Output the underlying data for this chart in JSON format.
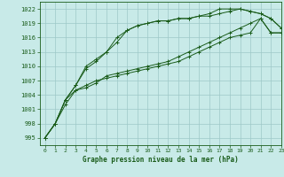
{
  "title": "Graphe pression niveau de la mer (hPa)",
  "bg_color": "#c8eae8",
  "grid_color": "#9ec8c8",
  "line_color": "#1a5c1a",
  "xlim": [
    -0.5,
    23
  ],
  "ylim": [
    993.5,
    1023.5
  ],
  "yticks": [
    995,
    998,
    1001,
    1004,
    1007,
    1010,
    1013,
    1016,
    1019,
    1022
  ],
  "xticks": [
    0,
    1,
    2,
    3,
    4,
    5,
    6,
    7,
    8,
    9,
    10,
    11,
    12,
    13,
    14,
    15,
    16,
    17,
    18,
    19,
    20,
    21,
    22,
    23
  ],
  "series": [
    [
      995,
      998,
      1003,
      1005,
      1006,
      1007,
      1007.5,
      1008,
      1008.5,
      1009,
      1009.5,
      1010,
      1010.5,
      1011,
      1012,
      1013,
      1014,
      1015,
      1016,
      1016.5,
      1017,
      1020,
      1017,
      1017
    ],
    [
      995,
      998,
      1003,
      1006,
      1009.5,
      1011,
      1013,
      1015,
      1017.5,
      1018.5,
      1019,
      1019.5,
      1019.5,
      1020,
      1020,
      1020.5,
      1020.5,
      1021,
      1021.5,
      1022,
      1021.5,
      1021,
      1020,
      1018
    ],
    [
      995,
      998,
      1003,
      1006,
      1010,
      1011.5,
      1013,
      1016,
      1017.5,
      1018.5,
      1019,
      1019.5,
      1019.5,
      1020,
      1020,
      1020.5,
      1021,
      1022,
      1022,
      1022,
      1021.5,
      1021,
      1020,
      1018
    ],
    [
      995,
      998,
      1002,
      1005,
      1005.5,
      1006.5,
      1008,
      1008.5,
      1009,
      1009.5,
      1010,
      1010.5,
      1011,
      1012,
      1013,
      1014,
      1015,
      1016,
      1017,
      1018,
      1019,
      1020,
      1017,
      1017
    ]
  ],
  "figsize": [
    3.2,
    2.0
  ],
  "dpi": 100
}
